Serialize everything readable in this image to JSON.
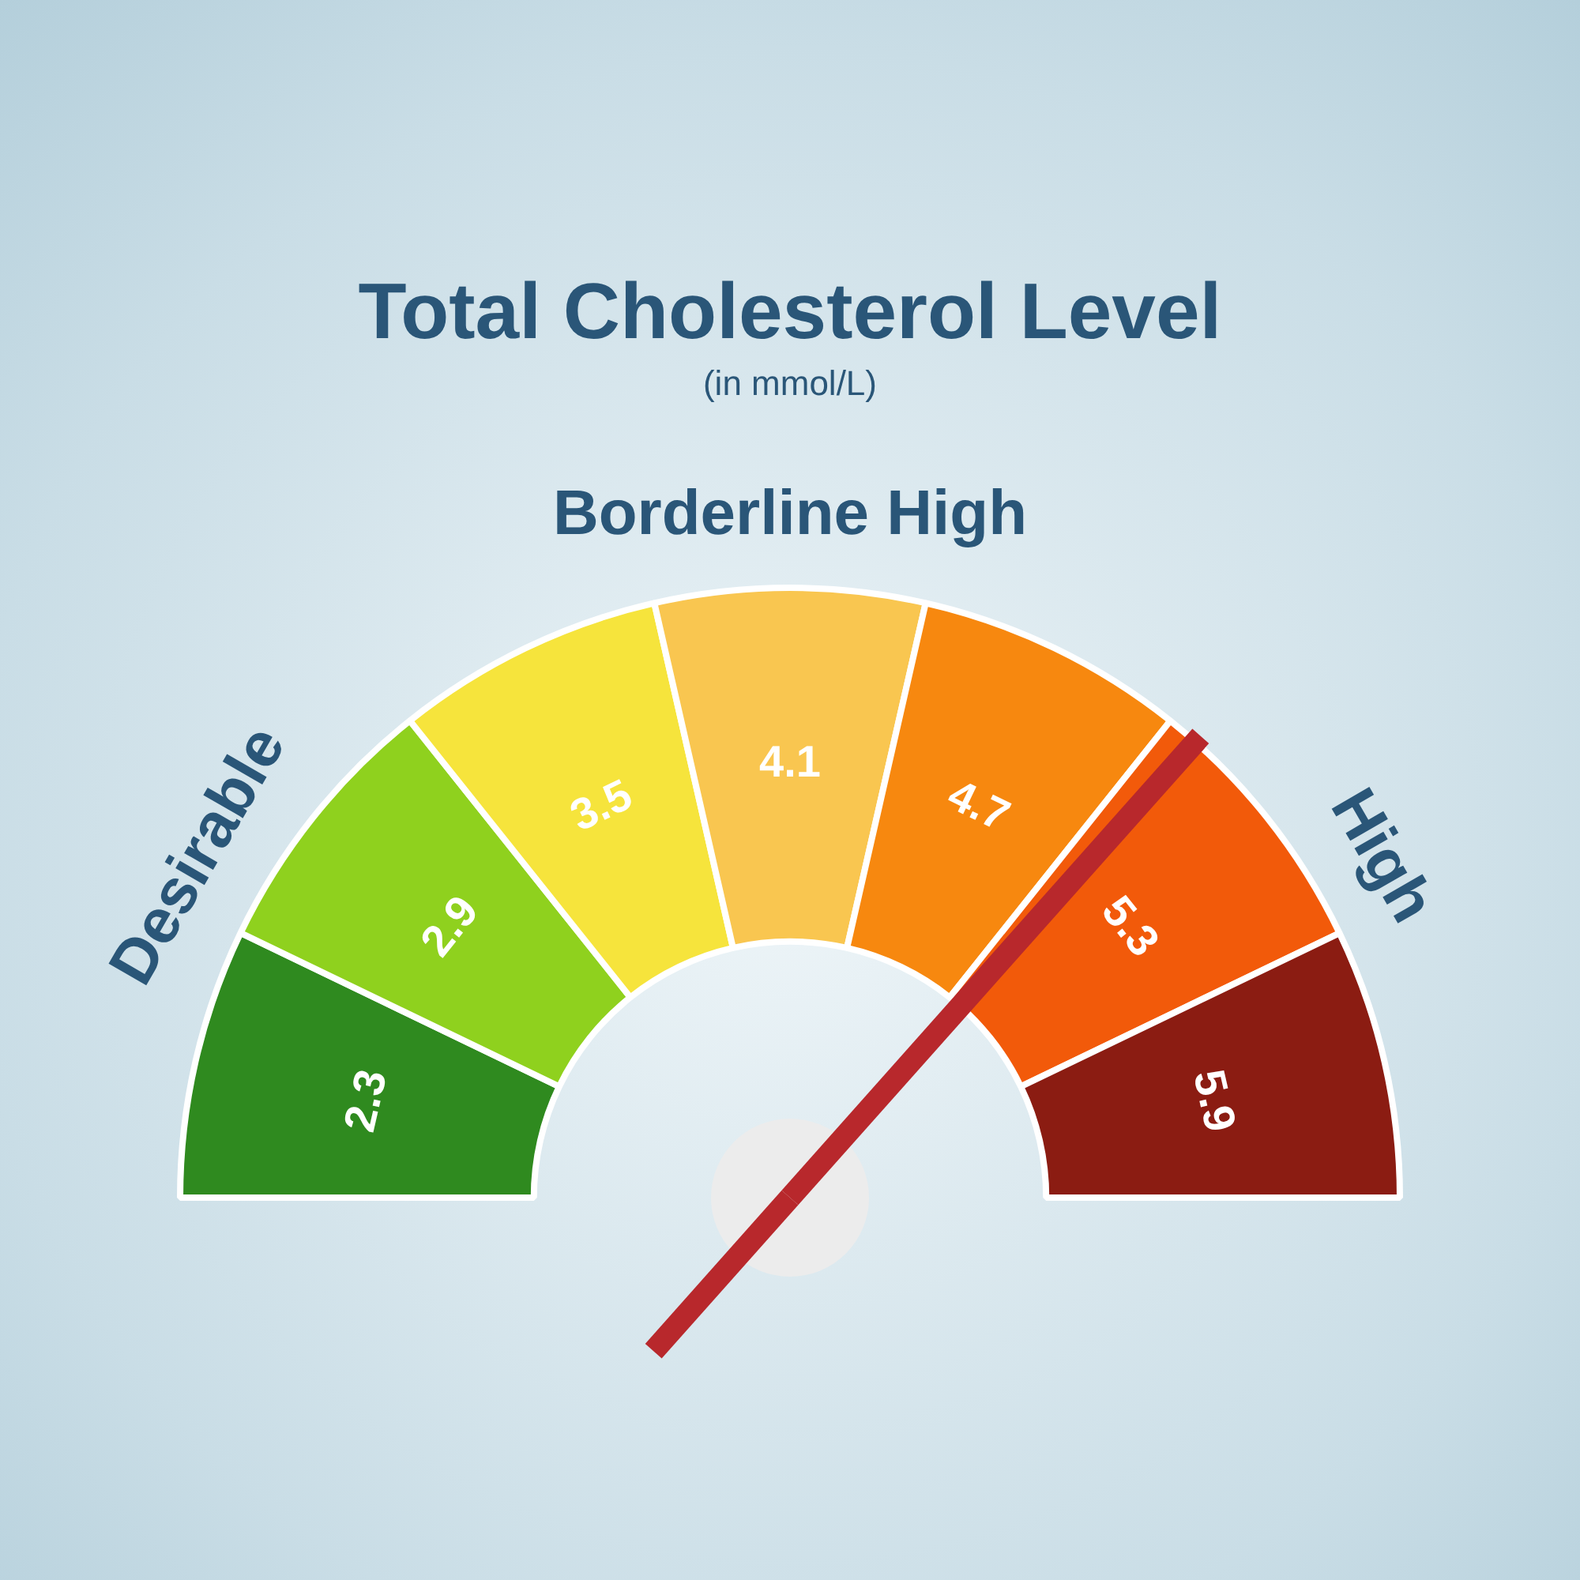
{
  "chart_data": {
    "type": "donut",
    "title": "Total Cholesterol Level",
    "subtitle": "(in mmol/L)",
    "categories": [
      "2.3",
      "2.9",
      "3.5",
      "4.1",
      "4.7",
      "5.3",
      "5.9"
    ],
    "values": [
      14.29,
      14.29,
      14.28,
      14.28,
      14.29,
      14.29,
      14.28
    ],
    "colors": [
      "#2f8a1f",
      "#8fd11e",
      "#f6e43c",
      "#f9c650",
      "#f7880f",
      "#f25a0a",
      "#8b1c12"
    ],
    "needle": "5.3",
    "annotations": [
      "Desirable",
      "Borderline High",
      "High"
    ]
  }
}
